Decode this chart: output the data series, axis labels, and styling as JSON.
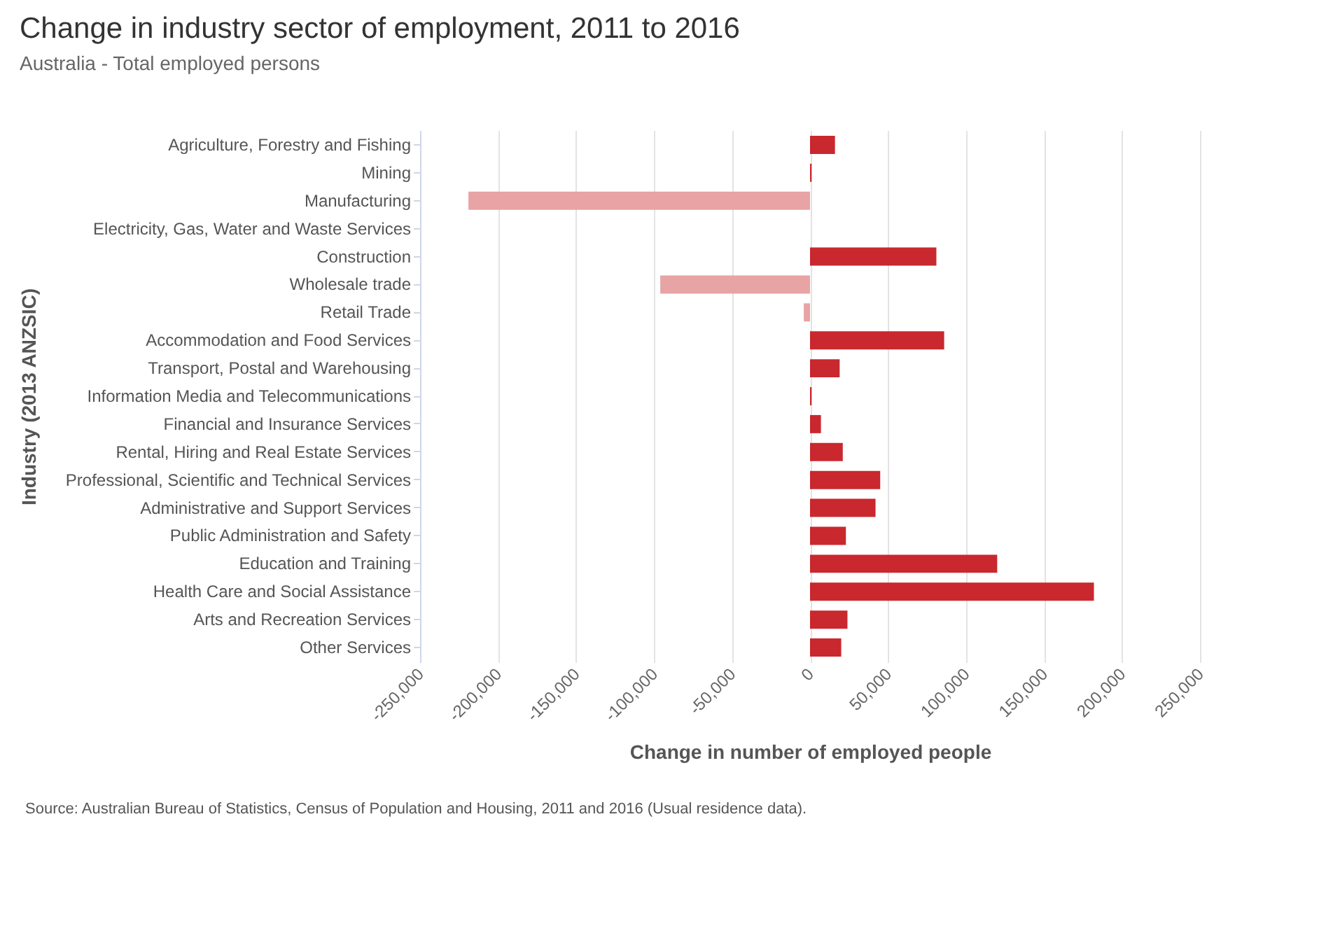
{
  "chart_data": {
    "type": "bar",
    "orientation": "horizontal",
    "title": "Change in industry sector of employment, 2011 to 2016",
    "subtitle": "Australia - Total employed persons",
    "xlabel": "Change in number of employed people",
    "ylabel": "Industry (2013 ANZSIC)",
    "categories": [
      "Agriculture, Forestry and Fishing",
      "Mining",
      "Manufacturing",
      "Electricity, Gas, Water and Waste Services",
      "Construction",
      "Wholesale trade",
      "Retail Trade",
      "Accommodation and Food Services",
      "Transport, Postal and Warehousing",
      "Information Media and Telecommunications",
      "Financial and Insurance Services",
      "Rental, Hiring and Real Estate Services",
      "Professional, Scientific and Technical Services",
      "Administrative and Support Services",
      "Public Administration and Safety",
      "Education and Training",
      "Health Care and Social Assistance",
      "Arts and Recreation Services",
      "Other Services"
    ],
    "values": [
      16000,
      1000,
      -219000,
      0,
      81000,
      -96000,
      -4000,
      86000,
      19000,
      1000,
      7000,
      21000,
      45000,
      42000,
      23000,
      120000,
      182000,
      24000,
      20000
    ],
    "colors": [
      "#c9282e",
      "#c9282e",
      "#e8a3a5",
      "#c9282e",
      "#c9282e",
      "#e8a3a5",
      "#e8a3a5",
      "#c9282e",
      "#c9282e",
      "#c9282e",
      "#c9282e",
      "#c9282e",
      "#c9282e",
      "#c9282e",
      "#c9282e",
      "#c9282e",
      "#c9282e",
      "#c9282e",
      "#c9282e"
    ],
    "xlim": [
      -250000,
      250000
    ],
    "xticks": [
      {
        "value": -250000,
        "label": "-250,000"
      },
      {
        "value": -200000,
        "label": "-200,000"
      },
      {
        "value": -150000,
        "label": "-150,000"
      },
      {
        "value": -100000,
        "label": "-100,000"
      },
      {
        "value": -50000,
        "label": "-50,000"
      },
      0,
      {
        "value": 50000,
        "label": "50,000"
      },
      {
        "value": 100000,
        "label": "100,000"
      },
      {
        "value": 150000,
        "label": "150,000"
      },
      {
        "value": 200000,
        "label": "200,000"
      },
      {
        "value": 250000,
        "label": "250,000"
      }
    ],
    "grid": "x",
    "annotations": [
      "Source: Australian Bureau of Statistics, Census of Population and Housing, 2011 and 2016 (Usual residence data)."
    ]
  }
}
